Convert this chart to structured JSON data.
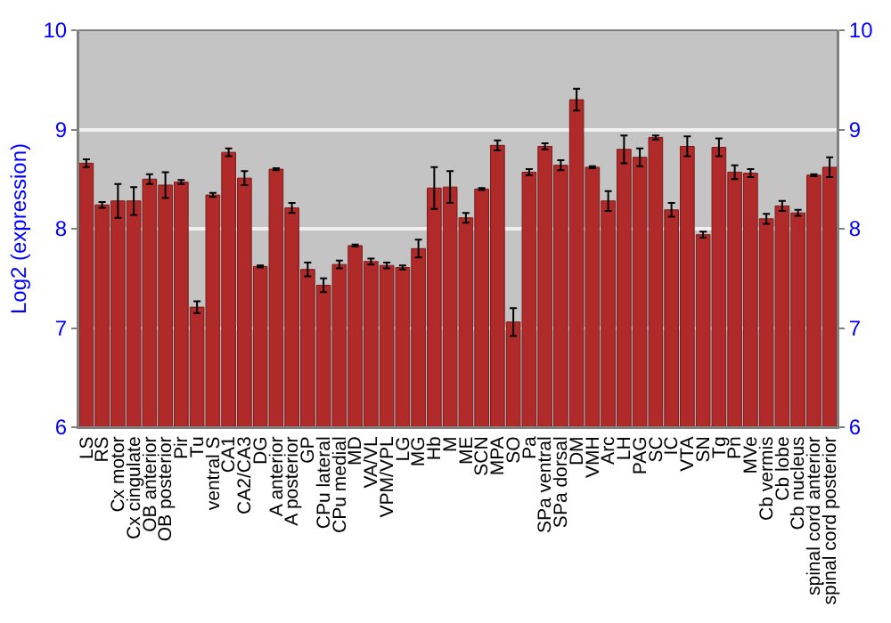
{
  "chart_data": {
    "type": "bar",
    "ylabel": "Log2 (expression)",
    "categories": [
      "LS",
      "RS",
      "Cx motor",
      "Cx cingulate",
      "OB anterior",
      "OB posterior",
      "Pir",
      "Tu",
      "ventral S",
      "CA1",
      "CA2/CA3",
      "DG",
      "A anterior",
      "A posterior",
      "GP",
      "CPu lateral",
      "CPu medial",
      "MD",
      "VA/VL",
      "VPM/VPL",
      "LG",
      "MG",
      "Hb",
      "M",
      "ME",
      "SCN",
      "MPA",
      "SO",
      "Pa",
      "SPa ventral",
      "SPa dorsal",
      "DM",
      "VMH",
      "Arc",
      "LH",
      "PAG",
      "SC",
      "IC",
      "VTA",
      "SN",
      "Tg",
      "Pn",
      "MVe",
      "Cb vermis",
      "Cb lobe",
      "Cb nucleus",
      "spinal cord anterior",
      "spinal cord posterior"
    ],
    "series": [
      {
        "color": "#b02a2a",
        "values": [
          8.66,
          8.24,
          8.28,
          8.28,
          8.5,
          8.44,
          8.47,
          7.21,
          8.34,
          8.77,
          8.51,
          7.62,
          8.6,
          8.21,
          7.59,
          7.43,
          7.64,
          7.83,
          7.67,
          7.63,
          7.61,
          7.8,
          8.41,
          8.42,
          8.11,
          8.4,
          8.84,
          7.06,
          8.57,
          8.83,
          8.64,
          9.3,
          8.62,
          8.28,
          8.8,
          8.72,
          8.92,
          8.19,
          8.83,
          7.94,
          8.82,
          8.57,
          8.56,
          8.1,
          8.23,
          8.16,
          8.54,
          8.62
        ],
        "errors": [
          0.04,
          0.03,
          0.17,
          0.14,
          0.05,
          0.13,
          0.02,
          0.06,
          0.02,
          0.04,
          0.07,
          0.01,
          0.01,
          0.05,
          0.07,
          0.07,
          0.04,
          0.01,
          0.03,
          0.03,
          0.02,
          0.09,
          0.21,
          0.16,
          0.05,
          0.01,
          0.05,
          0.14,
          0.03,
          0.03,
          0.05,
          0.11,
          0.01,
          0.1,
          0.14,
          0.09,
          0.02,
          0.07,
          0.1,
          0.03,
          0.09,
          0.07,
          0.04,
          0.05,
          0.05,
          0.03,
          0.01,
          0.1
        ]
      }
    ],
    "ylim": [
      6,
      10
    ],
    "yticks": [
      6,
      7,
      8,
      9,
      10
    ],
    "y2lim": [
      6,
      10
    ],
    "y2ticks": [
      6,
      7,
      8,
      9,
      10
    ],
    "grid": "y"
  }
}
